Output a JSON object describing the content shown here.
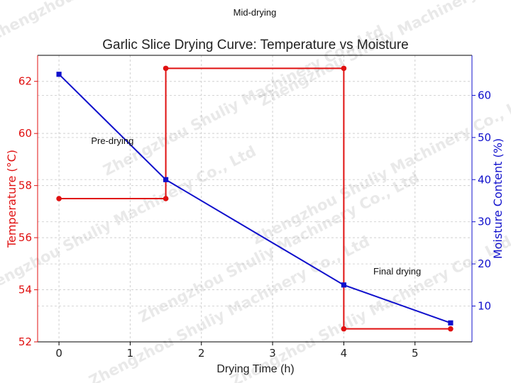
{
  "chart_data": {
    "type": "line",
    "title": "Garlic Slice Drying Curve: Temperature vs Moisture",
    "xlabel": "Drying Time (h)",
    "ylabel_left": "Temperature (°C)",
    "ylabel_right": "Moisture Content (%)",
    "xlim": [
      -0.3,
      5.8
    ],
    "ylim_left": [
      52,
      63
    ],
    "ylim_right": [
      1.5,
      69.5
    ],
    "x_ticks": [
      "0",
      "1",
      "2",
      "3",
      "4",
      "5"
    ],
    "y_left_ticks": [
      "52",
      "54",
      "56",
      "58",
      "60",
      "62"
    ],
    "y_right_ticks": [
      "10",
      "20",
      "30",
      "40",
      "50",
      "60"
    ],
    "grid": true,
    "series": [
      {
        "axis": "left",
        "color": "#e01010",
        "marker": "circle",
        "x": [
          0,
          1.5,
          1.5,
          4,
          4,
          5.5
        ],
        "y": [
          57.5,
          57.5,
          62.5,
          62.5,
          52.5,
          52.5
        ]
      },
      {
        "axis": "right",
        "color": "#1010cc",
        "marker": "square",
        "x": [
          0,
          1.5,
          4,
          5.5
        ],
        "y": [
          65,
          40,
          15,
          6
        ]
      }
    ],
    "annotations": [
      {
        "text": "Mid-drying",
        "x": 2.75,
        "y": 63.8
      },
      {
        "text": "Pre-drying",
        "x": 0.75,
        "y": 59.7
      },
      {
        "text": "Final drying",
        "x": 4.75,
        "y": 54.7
      }
    ]
  },
  "watermark": "Zhengzhou Shuliy Machinery Co., Ltd"
}
